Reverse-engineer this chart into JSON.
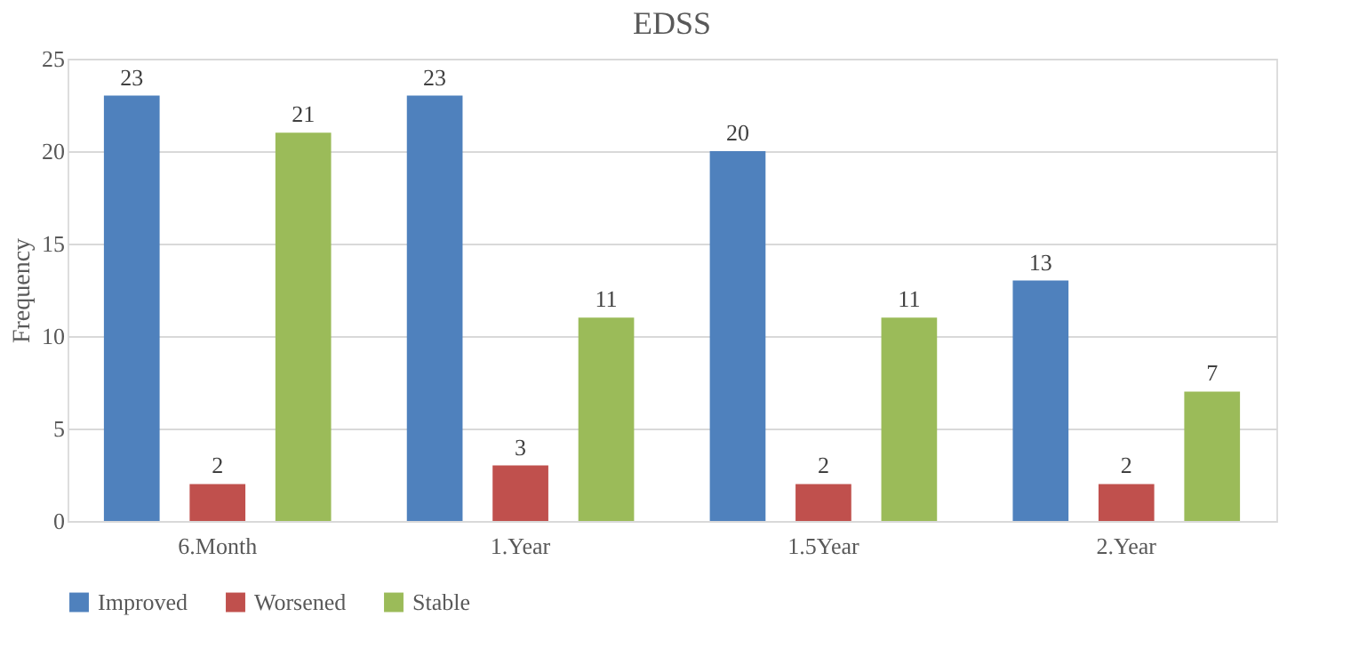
{
  "chart_data": {
    "type": "bar",
    "title": "EDSS",
    "ylabel": "Frequency",
    "categories": [
      "6.Month",
      "1.Year",
      "1.5Year",
      "2.Year"
    ],
    "series": [
      {
        "name": "Improved",
        "color": "#4f81bd",
        "values": [
          23,
          23,
          20,
          13
        ]
      },
      {
        "name": "Worsened",
        "color": "#c0504d",
        "values": [
          2,
          3,
          2,
          2
        ]
      },
      {
        "name": "Stable",
        "color": "#9bbb59",
        "values": [
          21,
          11,
          11,
          7
        ]
      }
    ],
    "ylim": [
      0,
      25
    ],
    "yticks": [
      0,
      5,
      10,
      15,
      20,
      25
    ],
    "grid": "y",
    "legend": "bottom",
    "data_labels": true
  }
}
